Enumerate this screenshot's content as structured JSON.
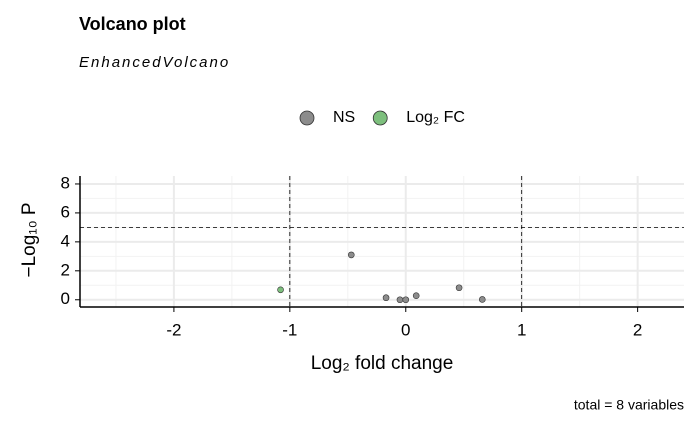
{
  "chart_data": {
    "type": "scatter",
    "title": "Volcano plot",
    "subtitle": "EnhancedVolcano",
    "x_label": "Log₂ fold change",
    "y_label": "−Log₁₀ P",
    "caption": "total = 8 variables",
    "series": [
      {
        "name": "NS",
        "color": "#8c8c8c",
        "x": [
          -0.47,
          -0.17,
          -0.05,
          0,
          0.09,
          0.46,
          0.66
        ],
        "values": [
          3.1,
          0.14,
          0,
          0,
          0.28,
          0.83,
          0.02
        ]
      },
      {
        "name": "Log₂ FC",
        "color": "#7dbf7d",
        "x": [
          -1.08
        ],
        "values": [
          0.69
        ]
      }
    ],
    "xlim": [
      -2.81,
      2.4
    ],
    "ylim": [
      -0.5,
      8.55
    ],
    "xticks": [
      -2,
      -1,
      0,
      1,
      2
    ],
    "yticks": [
      0,
      2,
      4,
      6,
      8
    ],
    "xminorticks": [
      -2.5,
      -1.5,
      -0.5,
      0.5,
      1.5
    ],
    "yminorticks": [
      1,
      3,
      5,
      7
    ],
    "xcutoffs": [
      -1,
      1
    ],
    "ycutoff": 5,
    "grid": true,
    "legend": "top"
  }
}
